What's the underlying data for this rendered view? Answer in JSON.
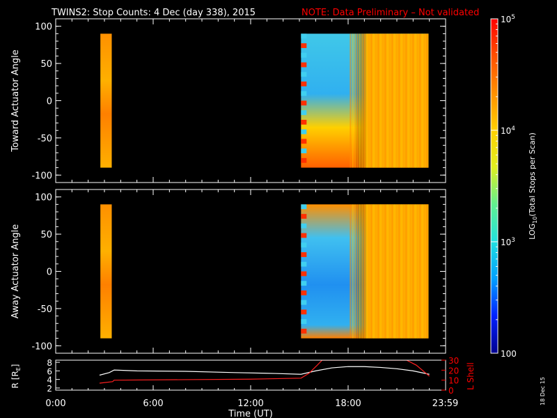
{
  "title": "TWINS2: Stop Counts:  4 Dec (day 338), 2015",
  "note": "NOTE: Data Preliminary – Not validated",
  "side_stamp": "18 Dec 15",
  "colors": {
    "background": "#000000",
    "axes": "#ffffff",
    "note": "#ff0000",
    "r_line": "#ffffff",
    "l_line": "#ff2020"
  },
  "chart_data": [
    {
      "type": "heatmap",
      "ylabel": "Toward Actuator Angle",
      "y_ticks": [
        "100",
        "50",
        "0",
        "-50",
        "-100"
      ],
      "y_tick_values": [
        100,
        50,
        0,
        -50,
        -100
      ],
      "ylim": [
        -110,
        110
      ],
      "xlim_hours": [
        0,
        24
      ],
      "data_blocks_hours": [
        [
          2.75,
          3.45
        ],
        [
          15.1,
          22.95
        ]
      ],
      "angle_range": [
        -90,
        90
      ]
    },
    {
      "type": "heatmap",
      "ylabel": "Away Actuator Angle",
      "y_ticks": [
        "100",
        "50",
        "0",
        "-50",
        "-100"
      ],
      "y_tick_values": [
        100,
        50,
        0,
        -50,
        -100
      ],
      "ylim": [
        -110,
        110
      ],
      "xlim_hours": [
        0,
        24
      ],
      "data_blocks_hours": [
        [
          2.75,
          3.45
        ],
        [
          15.1,
          22.95
        ]
      ],
      "angle_range": [
        -90,
        90
      ]
    },
    {
      "type": "line",
      "ylabel_left": "R [R",
      "ylabel_left_sub": "E",
      "ylabel_right": "L Shell",
      "y_ticks_left": [
        "8",
        "6",
        "4",
        "2"
      ],
      "y_tick_values_left": [
        8,
        6,
        4,
        2
      ],
      "ylim_left": [
        1.5,
        8.5
      ],
      "y_ticks_right": [
        "30",
        "20",
        "10",
        "0"
      ],
      "y_tick_values_right": [
        30,
        20,
        10,
        0
      ],
      "ylim_right": [
        0,
        30
      ],
      "xlabel": "Time (UT)",
      "x_ticks": [
        "0:00",
        "6:00",
        "12:00",
        "18:00",
        "23:59"
      ],
      "x_tick_values": [
        0,
        6,
        12,
        18,
        23.98
      ],
      "series": [
        {
          "name": "R",
          "x": [
            2.7,
            3.3,
            3.6,
            5,
            8,
            11,
            13.5,
            15.1,
            16,
            17,
            18,
            19,
            20,
            21,
            22,
            23
          ],
          "y": [
            5.0,
            5.6,
            6.2,
            6.0,
            5.9,
            5.6,
            5.4,
            5.2,
            6.0,
            6.7,
            7.0,
            7.0,
            6.8,
            6.5,
            6.0,
            5.2
          ]
        },
        {
          "name": "L Shell",
          "x": [
            2.7,
            3.5,
            3.6,
            8,
            12,
            15.1,
            15.6,
            16.1,
            16.4,
            21.6,
            22.2,
            23
          ],
          "y": [
            7,
            8.5,
            10,
            10.5,
            11,
            12,
            17,
            25,
            30,
            30,
            25,
            14
          ]
        }
      ]
    }
  ],
  "colorbar": {
    "label_main": "LOG",
    "label_sub": "10",
    "label_rest": "(Total Stops per Scan)",
    "ticks": [
      {
        "base": "10",
        "exp": "5",
        "plain": "",
        "value": 5
      },
      {
        "base": "10",
        "exp": "4",
        "plain": "",
        "value": 4
      },
      {
        "base": "10",
        "exp": "3",
        "plain": "",
        "value": 3
      },
      {
        "base": "",
        "exp": "",
        "plain": "100",
        "value": 2
      }
    ],
    "range": [
      2,
      5
    ],
    "stops": [
      "#000090",
      "#0020ff",
      "#00a0ff",
      "#20e0e0",
      "#60f090",
      "#e0f020",
      "#ffd000",
      "#ff9000",
      "#ff5000",
      "#ff0000"
    ]
  }
}
